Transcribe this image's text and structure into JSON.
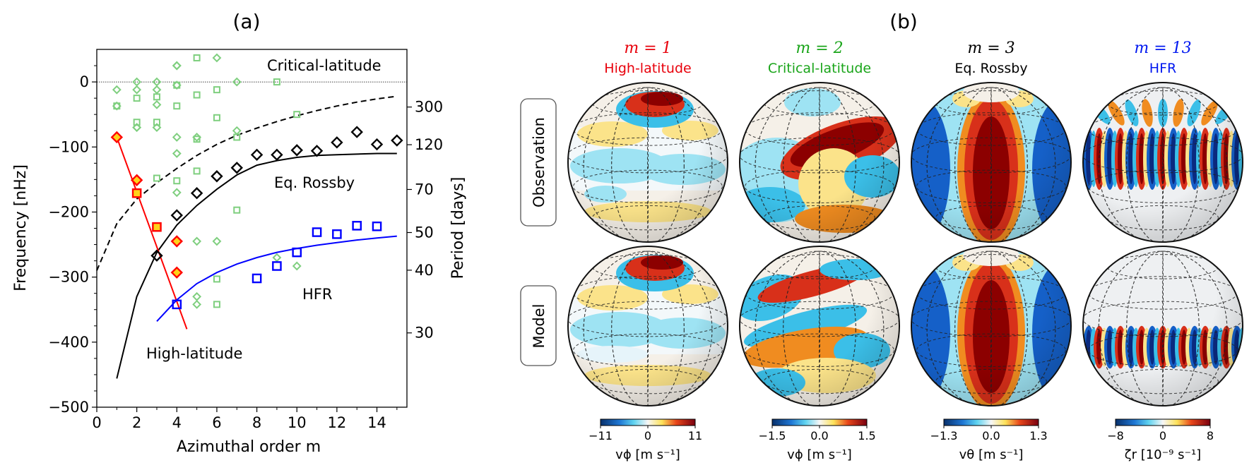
{
  "panel_a": {
    "label": "(a)",
    "chart_data": {
      "type": "scatter",
      "xlabel": "Azimuthal order m",
      "ylabel": "Frequency [nHz]",
      "y2label": "Period [days]",
      "xlim": [
        0,
        15.5
      ],
      "ylim": [
        -500,
        50
      ],
      "xticks": [
        0,
        2,
        4,
        6,
        8,
        10,
        12,
        14
      ],
      "yticks": [
        0,
        -100,
        -200,
        -300,
        -400,
        -500
      ],
      "y2ticks": [
        {
          "label": "300",
          "freq": -38.6
        },
        {
          "label": "120",
          "freq": -96.5
        },
        {
          "label": "70",
          "freq": -165.3
        },
        {
          "label": "50",
          "freq": -231.5
        },
        {
          "label": "40",
          "freq": -289.4
        },
        {
          "label": "30",
          "freq": -385.8
        }
      ],
      "zero_line": true,
      "annotations": [
        {
          "text": "Critical-latitude",
          "color": "#2ca02c"
        },
        {
          "text": "Eq. Rossby",
          "color": "#000000"
        },
        {
          "text": "HFR",
          "color": "#0000ff"
        },
        {
          "text": "High-latitude",
          "color": "#ff0000"
        }
      ],
      "series": [
        {
          "color": "#000000",
          "style": "dashed-line",
          "x": [
            0,
            1,
            2,
            3,
            4,
            5,
            6,
            7,
            8,
            9,
            10,
            11,
            12,
            13,
            14,
            15
          ],
          "y": [
            -290,
            -218,
            -180,
            -155,
            -133,
            -113,
            -96,
            -82,
            -71,
            -61,
            -52,
            -44,
            -37,
            -31,
            -26,
            -22
          ]
        },
        {
          "color": "#000000",
          "style": "solid-line",
          "x": [
            1,
            2,
            3,
            4,
            5,
            6,
            7,
            8,
            9,
            10,
            11,
            12,
            13,
            14,
            15
          ],
          "y": [
            -456,
            -330,
            -262,
            -220,
            -190,
            -165,
            -143,
            -128,
            -121,
            -116,
            -113,
            -112,
            -111,
            -110,
            -110
          ]
        },
        {
          "color": "#ff0000",
          "style": "solid-line",
          "x": [
            1,
            4.5
          ],
          "y": [
            -85,
            -380
          ]
        },
        {
          "color": "#0000ff",
          "style": "solid-line",
          "x": [
            3,
            4,
            5,
            6,
            7,
            8,
            9,
            10,
            11,
            12,
            13,
            14,
            15
          ],
          "y": [
            -368,
            -335,
            -310,
            -293,
            -280,
            -270,
            -262,
            -256,
            -251,
            -247,
            -243,
            -240,
            -237
          ]
        },
        {
          "color": "#000000",
          "marker": "diamond",
          "x": [
            3,
            4,
            5,
            6,
            7,
            8,
            9,
            10,
            11,
            12,
            13,
            14,
            15
          ],
          "y": [
            -267,
            -205,
            -171,
            -145,
            -132,
            -112,
            -112,
            -105,
            -106,
            -93,
            -77,
            -96,
            -90
          ]
        },
        {
          "color": "#0000ff",
          "marker": "square",
          "x": [
            4,
            8,
            9,
            10,
            11,
            12,
            13,
            14
          ],
          "y": [
            -342,
            -302,
            -283,
            -262,
            -231,
            -234,
            -221,
            -222
          ]
        },
        {
          "color": "#ff0000",
          "marker": "diamond-filled",
          "x": [
            1,
            2,
            4,
            4
          ],
          "y": [
            -85,
            -151,
            -245,
            -293
          ]
        },
        {
          "color": "#ff0000",
          "marker": "square-filled",
          "x": [
            2,
            3
          ],
          "y": [
            -171,
            -223
          ]
        },
        {
          "color": "#7fcf7f",
          "marker": "diamond",
          "x": [
            1,
            1,
            1,
            2,
            2,
            2,
            2,
            3,
            3,
            3,
            3,
            4,
            4,
            4,
            4,
            4,
            5,
            5,
            5,
            5,
            6,
            6,
            7,
            7,
            9,
            10,
            1,
            4,
            4
          ],
          "y": [
            -12,
            -37,
            -85,
            0,
            -12,
            -70,
            -70,
            0,
            -12,
            -35,
            -70,
            25,
            25,
            -85,
            -110,
            -170,
            -85,
            -245,
            -330,
            -342,
            37,
            -245,
            0,
            -75,
            -270,
            -283,
            -85,
            25,
            -5
          ]
        },
        {
          "color": "#7fcf7f",
          "marker": "square",
          "x": [
            1,
            2,
            2,
            3,
            3,
            3,
            4,
            4,
            4,
            5,
            5,
            5,
            5,
            6,
            6,
            6,
            6,
            7,
            7,
            9,
            10
          ],
          "y": [
            -37,
            -25,
            -62,
            -23,
            -62,
            -148,
            -5,
            -37,
            -152,
            37,
            -20,
            -88,
            -137,
            -12,
            -55,
            -303,
            -342,
            -85,
            -197,
            0,
            -50
          ]
        }
      ]
    }
  },
  "panel_b": {
    "label": "(b)",
    "rows": [
      "Observation",
      "Model"
    ],
    "columns": [
      {
        "m_label": "m = 1",
        "name": "High-latitude",
        "color": "#e8000b",
        "cb_ticks": [
          "−11",
          "0",
          "11"
        ],
        "cb_label": "vϕ [m s⁻¹]",
        "pattern": "high"
      },
      {
        "m_label": "m = 2",
        "name": "Critical-latitude",
        "color": "#1aa51a",
        "cb_ticks": [
          "−1.5",
          "0.0",
          "1.5"
        ],
        "cb_label": "vϕ [m s⁻¹]",
        "pattern": "critical"
      },
      {
        "m_label": "m = 3",
        "name": "Eq. Rossby",
        "color": "#000000",
        "cb_ticks": [
          "−1.3",
          "0.0",
          "1.3"
        ],
        "cb_label": "vθ [m s⁻¹]",
        "pattern": "rossby"
      },
      {
        "m_label": "m = 13",
        "name": "HFR",
        "color": "#0018f0",
        "cb_ticks": [
          "−8",
          "0",
          "8"
        ],
        "cb_label": "ζr [10⁻⁹ s⁻¹]",
        "pattern": "hfr"
      }
    ]
  }
}
